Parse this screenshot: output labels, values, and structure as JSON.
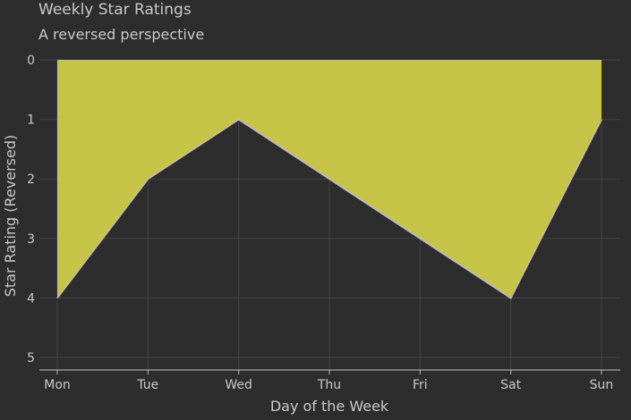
{
  "chart_data": {
    "type": "area",
    "title": "Weekly Star Ratings",
    "subtitle": "A reversed perspective",
    "xlabel": "Day of the Week",
    "ylabel": "Star Rating (Reversed)",
    "categories": [
      "Mon",
      "Tue",
      "Wed",
      "Thu",
      "Fri",
      "Sat",
      "Sun"
    ],
    "series": [
      {
        "values": [
          4,
          2,
          1,
          2,
          3,
          4,
          1
        ]
      }
    ],
    "y_ticks": [
      "0",
      "1",
      "2",
      "3",
      "4",
      "5"
    ],
    "ylim": [
      0,
      5
    ],
    "y_reversed": true,
    "grid": true,
    "legend": "none",
    "colors": {
      "background": "#2e2d2d",
      "fill": "#cbc948",
      "line": "#b9b9c8",
      "grid": "#454545",
      "axis": "#bfbfbf"
    }
  }
}
